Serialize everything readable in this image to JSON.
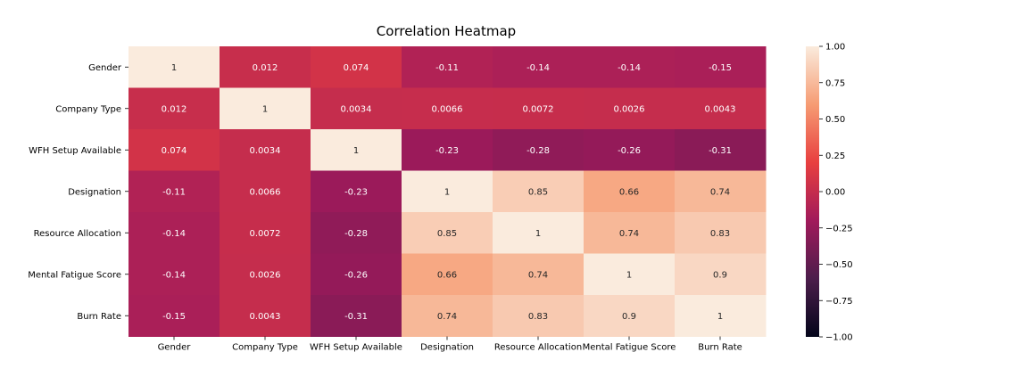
{
  "chart_data": {
    "type": "heatmap",
    "title": "Correlation Heatmap",
    "xlabel": "",
    "ylabel": "",
    "labels": [
      "Gender",
      "Company Type",
      "WFH Setup Available",
      "Designation",
      "Resource Allocation",
      "Mental Fatigue Score",
      "Burn Rate"
    ],
    "matrix": [
      [
        1,
        0.012,
        0.074,
        -0.11,
        -0.14,
        -0.14,
        -0.15
      ],
      [
        0.012,
        1,
        0.0034,
        0.0066,
        0.0072,
        0.0026,
        0.0043
      ],
      [
        0.074,
        0.0034,
        1,
        -0.23,
        -0.28,
        -0.26,
        -0.31
      ],
      [
        -0.11,
        0.0066,
        -0.23,
        1,
        0.85,
        0.66,
        0.74
      ],
      [
        -0.14,
        0.0072,
        -0.28,
        0.85,
        1,
        0.74,
        0.83
      ],
      [
        -0.14,
        0.0026,
        -0.26,
        0.66,
        0.74,
        1,
        0.9
      ],
      [
        -0.15,
        0.0043,
        -0.31,
        0.74,
        0.83,
        0.9,
        1
      ]
    ],
    "annotations": [
      [
        "1",
        "0.012",
        "0.074",
        "-0.11",
        "-0.14",
        "-0.14",
        "-0.15"
      ],
      [
        "0.012",
        "1",
        "0.0034",
        "0.0066",
        "0.0072",
        "0.0026",
        "0.0043"
      ],
      [
        "0.074",
        "0.0034",
        "1",
        "-0.23",
        "-0.28",
        "-0.26",
        "-0.31"
      ],
      [
        "-0.11",
        "0.0066",
        "-0.23",
        "1",
        "0.85",
        "0.66",
        "0.74"
      ],
      [
        "-0.14",
        "0.0072",
        "-0.28",
        "0.85",
        "1",
        "0.74",
        "0.83"
      ],
      [
        "-0.14",
        "0.0026",
        "-0.26",
        "0.66",
        "0.74",
        "1",
        "0.9"
      ],
      [
        "-0.15",
        "0.0043",
        "-0.31",
        "0.74",
        "0.83",
        "0.9",
        "1"
      ]
    ],
    "colorbar": {
      "vmin": -1.0,
      "vmax": 1.0,
      "ticks": [
        "-1.00",
        "-0.75",
        "-0.50",
        "-0.25",
        "0.00",
        "0.25",
        "0.50",
        "0.75",
        "1.00"
      ]
    },
    "colormap_stops": [
      "#03051a",
      "#4c1d4b",
      "#a11a5b",
      "#e83f3f",
      "#f69c73",
      "#faebdd"
    ]
  }
}
